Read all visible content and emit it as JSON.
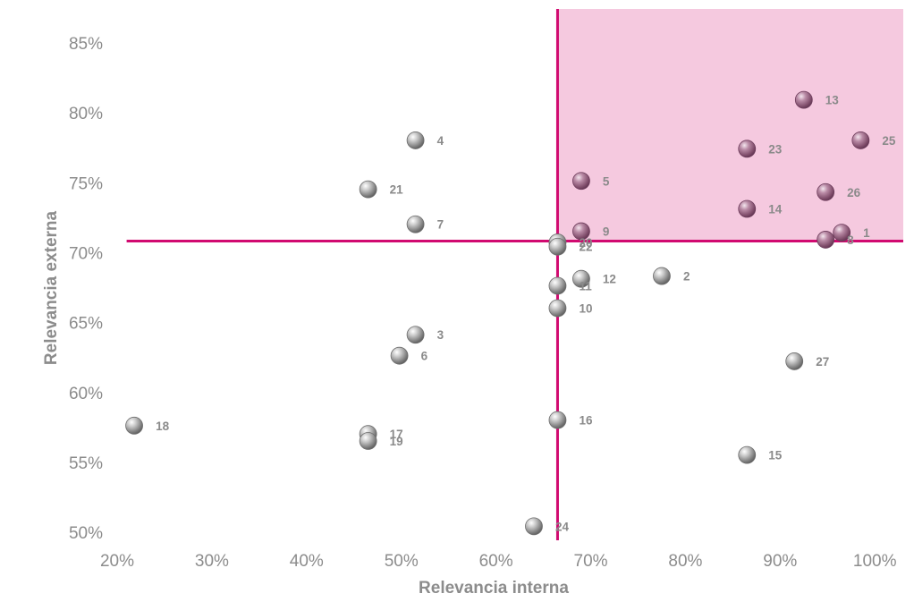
{
  "chart_data": {
    "type": "scatter",
    "title": "",
    "xlabel": "Relevancia interna",
    "ylabel": "Relevancia externa",
    "xlim": [
      0.2,
      1.03
    ],
    "ylim": [
      0.495,
      0.875
    ],
    "x_ticks": [
      "20%",
      "30%",
      "40%",
      "50%",
      "60%",
      "70%",
      "80%",
      "90%",
      "100%"
    ],
    "y_ticks": [
      "50%",
      "55%",
      "60%",
      "65%",
      "70%",
      "75%",
      "80%",
      "85%"
    ],
    "grid": false,
    "threshold": {
      "x": 0.665,
      "y": 0.709
    },
    "colors": {
      "highlight_region": "#f5c9df",
      "threshold_lines": "#d10a70",
      "point_gray": "#a6a6a6",
      "point_pink": "#a86c8f",
      "label": "#8a8a8a",
      "axis_text": "#8c8c8c"
    },
    "points": [
      {
        "label": "1",
        "x": 0.965,
        "y": 0.715
      },
      {
        "label": "2",
        "x": 0.775,
        "y": 0.684
      },
      {
        "label": "3",
        "x": 0.515,
        "y": 0.642
      },
      {
        "label": "4",
        "x": 0.515,
        "y": 0.781
      },
      {
        "label": "5",
        "x": 0.69,
        "y": 0.752
      },
      {
        "label": "6",
        "x": 0.498,
        "y": 0.627
      },
      {
        "label": "7",
        "x": 0.515,
        "y": 0.721
      },
      {
        "label": "8",
        "x": 0.948,
        "y": 0.71
      },
      {
        "label": "9",
        "x": 0.69,
        "y": 0.716
      },
      {
        "label": "10",
        "x": 0.665,
        "y": 0.661
      },
      {
        "label": "11",
        "x": 0.665,
        "y": 0.677
      },
      {
        "label": "12",
        "x": 0.69,
        "y": 0.682
      },
      {
        "label": "13",
        "x": 0.925,
        "y": 0.81
      },
      {
        "label": "14",
        "x": 0.865,
        "y": 0.732
      },
      {
        "label": "15",
        "x": 0.865,
        "y": 0.556
      },
      {
        "label": "16",
        "x": 0.665,
        "y": 0.581
      },
      {
        "label": "17",
        "x": 0.465,
        "y": 0.571
      },
      {
        "label": "18",
        "x": 0.218,
        "y": 0.577
      },
      {
        "label": "19",
        "x": 0.465,
        "y": 0.566
      },
      {
        "label": "20",
        "x": 0.665,
        "y": 0.708
      },
      {
        "label": "21",
        "x": 0.465,
        "y": 0.746
      },
      {
        "label": "22",
        "x": 0.665,
        "y": 0.705
      },
      {
        "label": "23",
        "x": 0.865,
        "y": 0.775
      },
      {
        "label": "24",
        "x": 0.64,
        "y": 0.505
      },
      {
        "label": "25",
        "x": 0.985,
        "y": 0.781
      },
      {
        "label": "26",
        "x": 0.948,
        "y": 0.744
      },
      {
        "label": "27",
        "x": 0.915,
        "y": 0.623
      }
    ]
  }
}
